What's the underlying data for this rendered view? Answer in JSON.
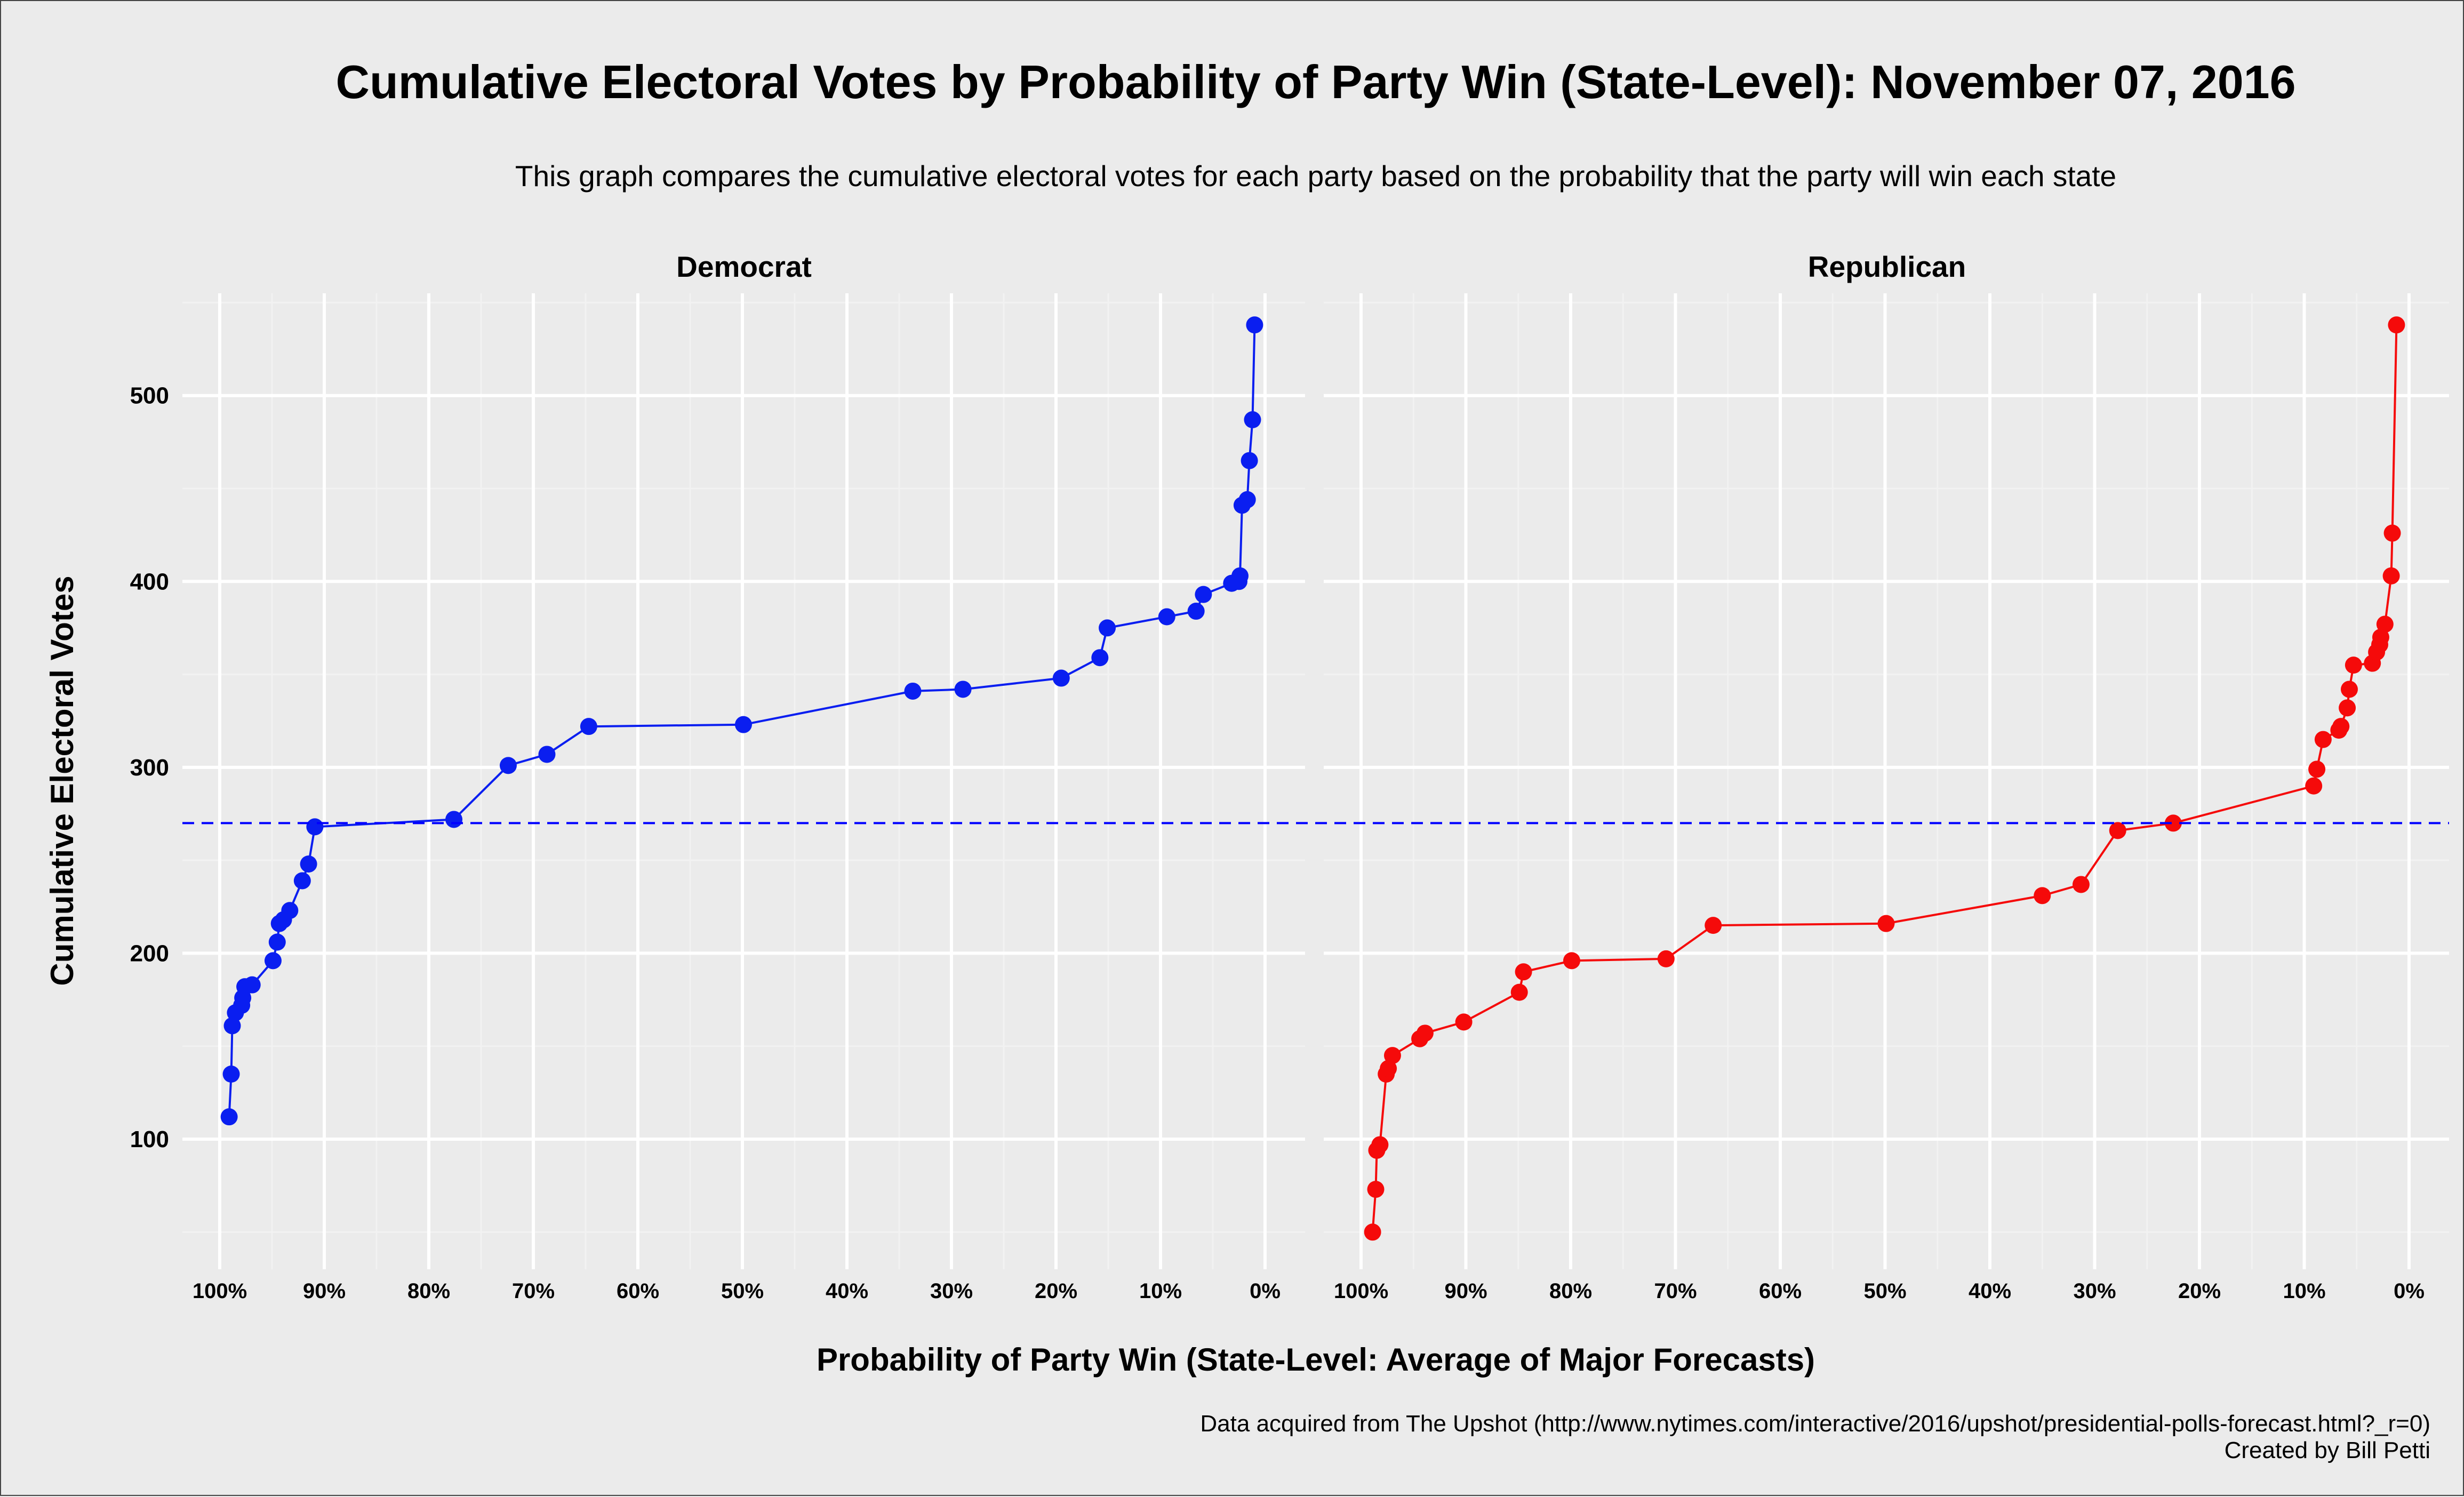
{
  "title": "Cumulative Electoral Votes by Probability of Party Win (State-Level): November 07, 2016",
  "subtitle": "This graph compares the cumulative electoral votes for each party based on the probability that the party will win each state",
  "caption_line1": "Data acquired from The Upshot (http://www.nytimes.com/interactive/2016/upshot/presidential-polls-forecast.html?_r=0)",
  "caption_line2": "Created by Bill Petti",
  "chart_data": {
    "type": "line",
    "xlabel": "Probability of Party Win (State-Level: Average of Major Forecasts)",
    "ylabel": "Cumulative Electoral Votes",
    "x_reversed": true,
    "xlim": [
      100,
      0
    ],
    "ylim": [
      30,
      555
    ],
    "x_ticks": [
      100,
      90,
      80,
      70,
      60,
      50,
      40,
      30,
      20,
      10,
      0
    ],
    "x_tick_labels": [
      "100%",
      "90%",
      "80%",
      "70%",
      "60%",
      "50%",
      "40%",
      "30%",
      "20%",
      "10%",
      "0%"
    ],
    "y_ticks": [
      100,
      200,
      300,
      400,
      500
    ],
    "y_tick_labels": [
      "100",
      "200",
      "300",
      "400",
      "500"
    ],
    "grid": true,
    "reference_line": {
      "y": 270,
      "style": "dashed",
      "color": "#0000ff"
    },
    "panels": [
      {
        "name": "Democrat",
        "color": "#0a1ef0",
        "points": [
          {
            "x": 99.1,
            "y": 112
          },
          {
            "x": 98.9,
            "y": 135
          },
          {
            "x": 98.8,
            "y": 161
          },
          {
            "x": 98.5,
            "y": 168
          },
          {
            "x": 97.9,
            "y": 172
          },
          {
            "x": 97.8,
            "y": 176
          },
          {
            "x": 97.6,
            "y": 182
          },
          {
            "x": 96.9,
            "y": 183
          },
          {
            "x": 94.9,
            "y": 196
          },
          {
            "x": 94.5,
            "y": 206
          },
          {
            "x": 94.3,
            "y": 216
          },
          {
            "x": 93.9,
            "y": 218
          },
          {
            "x": 93.3,
            "y": 223
          },
          {
            "x": 92.1,
            "y": 239
          },
          {
            "x": 91.5,
            "y": 248
          },
          {
            "x": 90.9,
            "y": 268
          },
          {
            "x": 77.6,
            "y": 272
          },
          {
            "x": 72.4,
            "y": 301
          },
          {
            "x": 68.7,
            "y": 307
          },
          {
            "x": 64.7,
            "y": 322
          },
          {
            "x": 49.9,
            "y": 323
          },
          {
            "x": 33.7,
            "y": 341
          },
          {
            "x": 28.9,
            "y": 342
          },
          {
            "x": 19.5,
            "y": 348
          },
          {
            "x": 15.8,
            "y": 359
          },
          {
            "x": 15.1,
            "y": 375
          },
          {
            "x": 9.4,
            "y": 381
          },
          {
            "x": 6.6,
            "y": 384
          },
          {
            "x": 5.9,
            "y": 393
          },
          {
            "x": 3.2,
            "y": 399
          },
          {
            "x": 2.5,
            "y": 400
          },
          {
            "x": 2.4,
            "y": 403
          },
          {
            "x": 2.2,
            "y": 441
          },
          {
            "x": 1.7,
            "y": 444
          },
          {
            "x": 1.5,
            "y": 465
          },
          {
            "x": 1.2,
            "y": 487
          },
          {
            "x": 1.0,
            "y": 538
          }
        ]
      },
      {
        "name": "Republican",
        "color": "#f50a0a",
        "points": [
          {
            "x": 98.9,
            "y": 50
          },
          {
            "x": 98.6,
            "y": 73
          },
          {
            "x": 98.5,
            "y": 94
          },
          {
            "x": 98.2,
            "y": 97
          },
          {
            "x": 97.6,
            "y": 135
          },
          {
            "x": 97.4,
            "y": 138
          },
          {
            "x": 97.0,
            "y": 145
          },
          {
            "x": 94.4,
            "y": 154
          },
          {
            "x": 93.9,
            "y": 157
          },
          {
            "x": 90.2,
            "y": 163
          },
          {
            "x": 84.9,
            "y": 179
          },
          {
            "x": 84.5,
            "y": 190
          },
          {
            "x": 79.9,
            "y": 196
          },
          {
            "x": 70.9,
            "y": 197
          },
          {
            "x": 66.4,
            "y": 215
          },
          {
            "x": 49.9,
            "y": 216
          },
          {
            "x": 35.0,
            "y": 231
          },
          {
            "x": 31.3,
            "y": 237
          },
          {
            "x": 27.8,
            "y": 266
          },
          {
            "x": 22.5,
            "y": 270
          },
          {
            "x": 9.1,
            "y": 290
          },
          {
            "x": 8.8,
            "y": 299
          },
          {
            "x": 8.2,
            "y": 315
          },
          {
            "x": 6.7,
            "y": 320
          },
          {
            "x": 6.5,
            "y": 322
          },
          {
            "x": 5.9,
            "y": 332
          },
          {
            "x": 5.7,
            "y": 342
          },
          {
            "x": 5.3,
            "y": 355
          },
          {
            "x": 3.5,
            "y": 356
          },
          {
            "x": 3.1,
            "y": 362
          },
          {
            "x": 2.8,
            "y": 366
          },
          {
            "x": 2.7,
            "y": 370
          },
          {
            "x": 2.3,
            "y": 377
          },
          {
            "x": 1.7,
            "y": 403
          },
          {
            "x": 1.6,
            "y": 426
          },
          {
            "x": 1.2,
            "y": 538
          }
        ]
      }
    ]
  }
}
